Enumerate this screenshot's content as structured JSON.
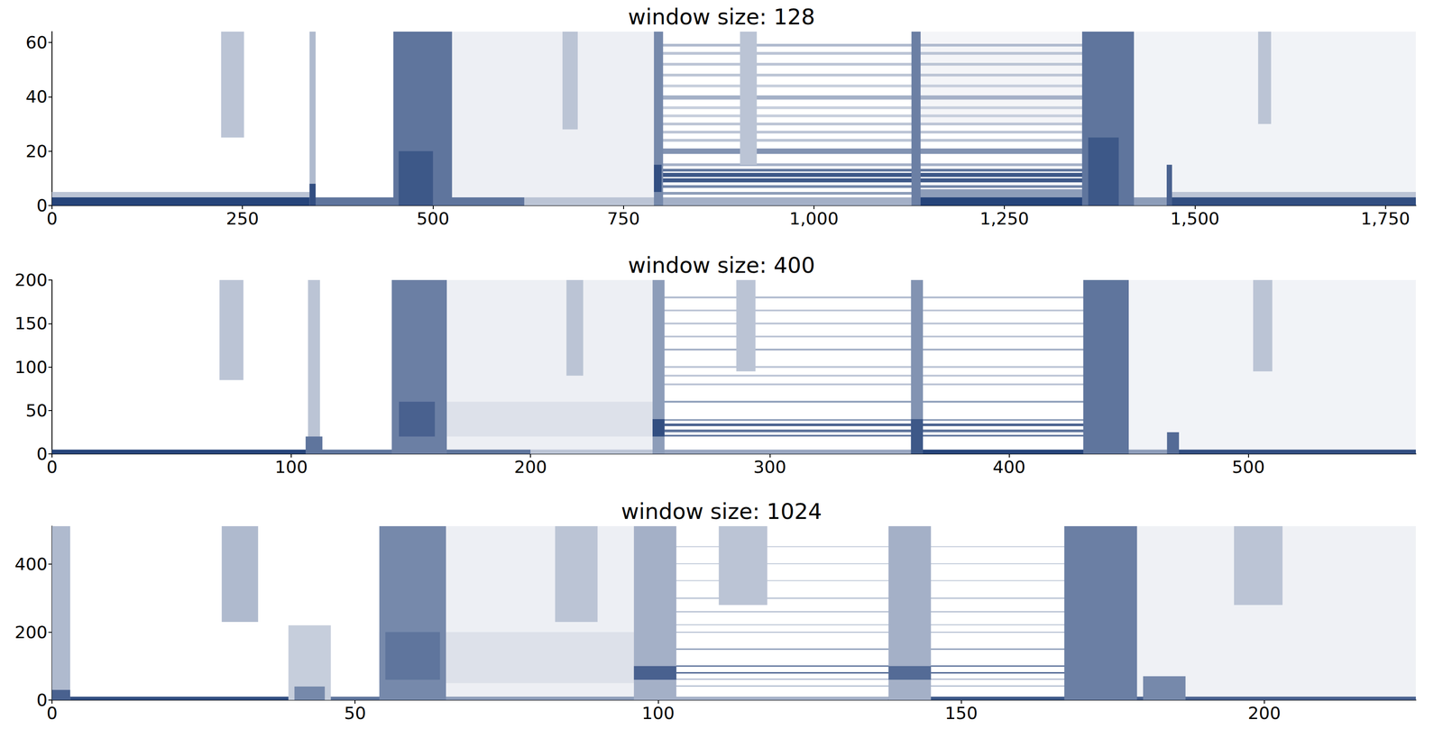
{
  "chart_data": [
    {
      "type": "heatmap",
      "title": "window size: 128",
      "color": "#1b3a73",
      "zlim": [
        0,
        1
      ],
      "xlim": [
        0,
        1790
      ],
      "xticks": [
        0,
        250,
        500,
        750,
        1000,
        1250,
        1500,
        1750
      ],
      "ylim": [
        0,
        64
      ],
      "yticks": [
        0,
        20,
        40,
        60
      ],
      "cells": [
        [
          450,
          790,
          0,
          64,
          0.08
        ],
        [
          1350,
          1790,
          0,
          64,
          0.06
        ],
        [
          1130,
          1355,
          30,
          64,
          0.05
        ],
        [
          0,
          340,
          0,
          3,
          0.95
        ],
        [
          340,
          620,
          0,
          3,
          0.7
        ],
        [
          620,
          790,
          0,
          3,
          0.3
        ],
        [
          790,
          1130,
          0,
          3,
          0.4
        ],
        [
          1130,
          1355,
          0,
          3,
          0.95
        ],
        [
          1355,
          1465,
          0,
          3,
          0.5
        ],
        [
          1465,
          1790,
          0,
          3,
          0.9
        ],
        [
          0,
          340,
          3,
          5,
          0.3
        ],
        [
          1465,
          1790,
          3,
          5,
          0.3
        ],
        [
          1130,
          1355,
          3,
          6,
          0.5
        ],
        [
          795,
          1355,
          4,
          5,
          0.5
        ],
        [
          795,
          1355,
          6.5,
          7.5,
          0.6
        ],
        [
          795,
          1355,
          8.5,
          10,
          0.85
        ],
        [
          795,
          1355,
          10.5,
          12,
          0.85
        ],
        [
          795,
          1355,
          12.5,
          13.5,
          0.7
        ],
        [
          795,
          1355,
          14.5,
          15.5,
          0.4
        ],
        [
          795,
          1355,
          19,
          21,
          0.55
        ],
        [
          795,
          1355,
          23.5,
          24.5,
          0.3
        ],
        [
          795,
          1355,
          26.5,
          27.5,
          0.3
        ],
        [
          795,
          1355,
          29.5,
          30.5,
          0.3
        ],
        [
          795,
          1355,
          32.5,
          33.5,
          0.25
        ],
        [
          795,
          1355,
          35.5,
          36.5,
          0.25
        ],
        [
          795,
          1355,
          39,
          40.5,
          0.4
        ],
        [
          795,
          1355,
          43.5,
          44.5,
          0.25
        ],
        [
          795,
          1355,
          47.5,
          48.5,
          0.3
        ],
        [
          795,
          1355,
          51.5,
          52.5,
          0.3
        ],
        [
          795,
          1355,
          55.5,
          56.5,
          0.3
        ],
        [
          795,
          1355,
          58.5,
          59.5,
          0.35
        ],
        [
          338,
          346,
          0,
          64,
          0.35
        ],
        [
          338,
          346,
          0,
          8,
          0.9
        ],
        [
          222,
          252,
          25,
          64,
          0.3
        ],
        [
          448,
          525,
          0,
          64,
          0.7
        ],
        [
          455,
          500,
          0,
          20,
          0.85
        ],
        [
          670,
          690,
          28,
          64,
          0.3
        ],
        [
          790,
          802,
          0,
          64,
          0.6
        ],
        [
          790,
          800,
          5,
          15,
          0.9
        ],
        [
          903,
          925,
          15,
          64,
          0.3
        ],
        [
          1128,
          1140,
          0,
          64,
          0.65
        ],
        [
          1352,
          1420,
          0,
          64,
          0.7
        ],
        [
          1360,
          1400,
          0,
          25,
          0.85
        ],
        [
          1463,
          1470,
          0,
          15,
          0.8
        ],
        [
          1583,
          1600,
          30,
          64,
          0.3
        ]
      ]
    },
    {
      "type": "heatmap",
      "title": "window size: 400",
      "color": "#1b3a73",
      "zlim": [
        0,
        1
      ],
      "xlim": [
        0,
        570
      ],
      "xticks": [
        0,
        100,
        200,
        300,
        400,
        500
      ],
      "ylim": [
        0,
        200
      ],
      "yticks": [
        0,
        50,
        100,
        150,
        200
      ],
      "cells": [
        [
          143,
          252,
          0,
          200,
          0.08
        ],
        [
          432,
          570,
          0,
          200,
          0.06
        ],
        [
          143,
          252,
          20,
          60,
          0.15
        ],
        [
          0,
          108,
          0,
          5,
          0.95
        ],
        [
          108,
          200,
          0,
          5,
          0.7
        ],
        [
          200,
          252,
          0,
          5,
          0.3
        ],
        [
          252,
          360,
          0,
          5,
          0.45
        ],
        [
          360,
          432,
          0,
          5,
          0.95
        ],
        [
          432,
          468,
          0,
          5,
          0.5
        ],
        [
          468,
          570,
          0,
          5,
          0.9
        ],
        [
          253,
          432,
          20,
          22,
          0.7
        ],
        [
          253,
          432,
          25,
          28,
          0.7
        ],
        [
          253,
          432,
          32,
          35,
          0.8
        ],
        [
          253,
          432,
          38,
          40,
          0.5
        ],
        [
          253,
          432,
          59,
          61,
          0.5
        ],
        [
          253,
          432,
          79,
          81,
          0.3
        ],
        [
          253,
          432,
          89,
          91,
          0.3
        ],
        [
          253,
          432,
          99,
          101,
          0.3
        ],
        [
          253,
          432,
          119,
          121,
          0.4
        ],
        [
          253,
          432,
          134,
          136,
          0.3
        ],
        [
          253,
          432,
          149,
          151,
          0.3
        ],
        [
          253,
          432,
          164,
          166,
          0.3
        ],
        [
          253,
          432,
          179,
          181,
          0.35
        ],
        [
          107,
          112,
          0,
          200,
          0.3
        ],
        [
          106,
          113,
          0,
          20,
          0.7
        ],
        [
          70,
          80,
          85,
          200,
          0.3
        ],
        [
          142,
          165,
          0,
          200,
          0.65
        ],
        [
          145,
          160,
          20,
          60,
          0.8
        ],
        [
          215,
          222,
          90,
          200,
          0.3
        ],
        [
          251,
          256,
          0,
          200,
          0.5
        ],
        [
          251,
          256,
          20,
          40,
          0.9
        ],
        [
          286,
          294,
          95,
          200,
          0.3
        ],
        [
          359,
          364,
          0,
          200,
          0.55
        ],
        [
          359,
          364,
          0,
          40,
          0.85
        ],
        [
          431,
          450,
          0,
          200,
          0.7
        ],
        [
          466,
          471,
          0,
          25,
          0.75
        ],
        [
          502,
          510,
          95,
          200,
          0.3
        ]
      ]
    },
    {
      "type": "heatmap",
      "title": "window size: 1024",
      "color": "#1b3a73",
      "zlim": [
        0,
        1
      ],
      "xlim": [
        0,
        225
      ],
      "xticks": [
        0,
        50,
        100,
        150,
        200
      ],
      "ylim": [
        0,
        512
      ],
      "yticks": [
        0,
        200,
        400
      ],
      "cells": [
        [
          54,
          97,
          0,
          512,
          0.08
        ],
        [
          168,
          225,
          0,
          512,
          0.07
        ],
        [
          54,
          97,
          50,
          200,
          0.15
        ],
        [
          0,
          40,
          0,
          10,
          0.9
        ],
        [
          40,
          55,
          0,
          10,
          0.7
        ],
        [
          55,
          97,
          0,
          10,
          0.5
        ],
        [
          97,
          138,
          0,
          10,
          0.4
        ],
        [
          138,
          168,
          0,
          10,
          0.85
        ],
        [
          168,
          225,
          0,
          10,
          0.8
        ],
        [
          97,
          168,
          40,
          43,
          0.4
        ],
        [
          97,
          168,
          60,
          63,
          0.4
        ],
        [
          97,
          168,
          78,
          82,
          0.8
        ],
        [
          97,
          168,
          98,
          102,
          0.7
        ],
        [
          97,
          168,
          148,
          152,
          0.5
        ],
        [
          97,
          168,
          198,
          201,
          0.35
        ],
        [
          97,
          168,
          220,
          223,
          0.3
        ],
        [
          97,
          168,
          258,
          262,
          0.3
        ],
        [
          97,
          168,
          298,
          302,
          0.3
        ],
        [
          97,
          168,
          350,
          353,
          0.25
        ],
        [
          97,
          168,
          400,
          403,
          0.25
        ],
        [
          97,
          168,
          450,
          453,
          0.25
        ],
        [
          0,
          3,
          0,
          512,
          0.35
        ],
        [
          0,
          3,
          0,
          30,
          0.8
        ],
        [
          28,
          34,
          230,
          512,
          0.35
        ],
        [
          39,
          46,
          0,
          220,
          0.25
        ],
        [
          40,
          45,
          0,
          40,
          0.6
        ],
        [
          54,
          65,
          0,
          512,
          0.6
        ],
        [
          55,
          64,
          60,
          200,
          0.7
        ],
        [
          83,
          90,
          230,
          512,
          0.3
        ],
        [
          96,
          103,
          0,
          512,
          0.4
        ],
        [
          96,
          103,
          60,
          100,
          0.8
        ],
        [
          110,
          118,
          280,
          512,
          0.3
        ],
        [
          138,
          145,
          0,
          512,
          0.4
        ],
        [
          138,
          145,
          60,
          100,
          0.75
        ],
        [
          167,
          179,
          0,
          512,
          0.65
        ],
        [
          180,
          187,
          0,
          70,
          0.6
        ],
        [
          195,
          203,
          280,
          512,
          0.3
        ]
      ]
    }
  ]
}
